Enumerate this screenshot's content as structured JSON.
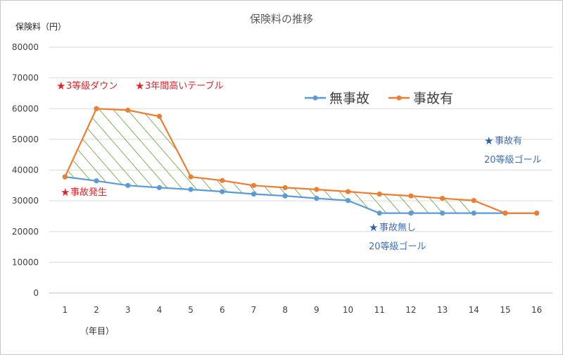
{
  "chart_data": {
    "type": "line",
    "title": "保険料の推移",
    "ylabel": "保険料（円）",
    "xlabel": "（年目）",
    "ylim": [
      0,
      80000
    ],
    "yticks": [
      0,
      10000,
      20000,
      30000,
      40000,
      50000,
      60000,
      70000,
      80000
    ],
    "categories": [
      "1",
      "2",
      "3",
      "4",
      "5",
      "6",
      "7",
      "8",
      "9",
      "10",
      "11",
      "12",
      "13",
      "14",
      "15",
      "16"
    ],
    "grid": true,
    "legend_position": "top-right",
    "series": [
      {
        "name": "無事故",
        "color": "#5b9bd5",
        "values": [
          37800,
          36500,
          35000,
          34300,
          33700,
          33000,
          32200,
          31600,
          30800,
          30100,
          26000,
          26000,
          26000,
          26000,
          26000,
          26000
        ]
      },
      {
        "name": "事故有",
        "color": "#ed7d31",
        "values": [
          37800,
          60000,
          59500,
          57500,
          37800,
          36600,
          35000,
          34300,
          33700,
          33000,
          32200,
          31600,
          30800,
          30100,
          26000,
          26000
        ]
      }
    ],
    "hatch_color": "#70ad47",
    "annotations": [
      {
        "id": "accident",
        "star": "★",
        "text": "事故発生",
        "color": "#e0242a"
      },
      {
        "id": "down3",
        "star": "★",
        "text": "3等級ダウン",
        "color": "#e0242a"
      },
      {
        "id": "table3",
        "star": "★",
        "text": "3年間高いテーブル",
        "color": "#e0242a"
      },
      {
        "id": "noacc",
        "star": "★",
        "text": "事故無し",
        "sub": "20等級ゴール",
        "color": "#2f5ea8"
      },
      {
        "id": "acc",
        "star": "★",
        "text": "事故有",
        "sub": "20等級ゴール",
        "color": "#2f5ea8"
      }
    ]
  }
}
